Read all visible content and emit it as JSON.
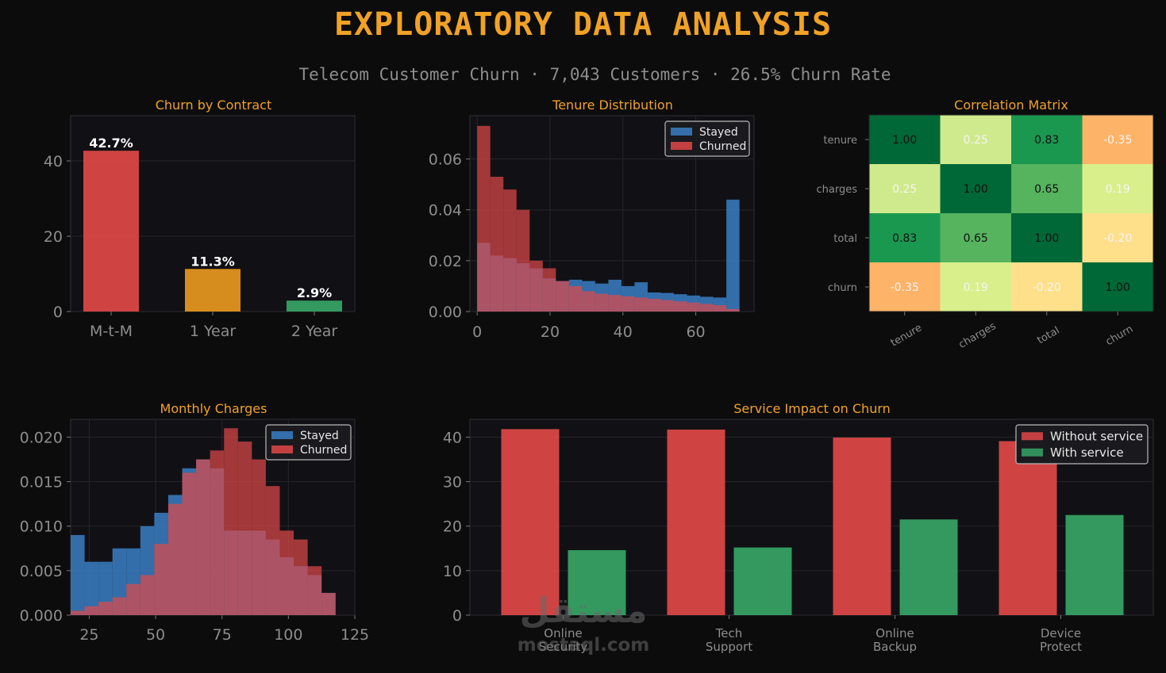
{
  "header": {
    "title": "EXPLORATORY DATA ANALYSIS",
    "subtitle": "Telecom Customer Churn  ·  7,043 Customers  ·  26.5% Churn Rate"
  },
  "colors": {
    "accent": "#f0a226",
    "red": "#e04848",
    "orange": "#e8981e",
    "green": "#36a566",
    "blue": "#3a7fc4",
    "panel_bg": "#111115",
    "axis_text": "#8d8d8d"
  },
  "chart_data": [
    {
      "type": "bar",
      "title": "Churn by Contract",
      "categories": [
        "M-t-M",
        "1 Year",
        "2 Year"
      ],
      "values": [
        42.7,
        11.3,
        2.9
      ],
      "labels": [
        "42.7%",
        "11.3%",
        "2.9%"
      ],
      "bar_colors": [
        "#e04848",
        "#e8981e",
        "#36a566"
      ],
      "ylim": [
        0,
        52
      ],
      "yticks": [
        0,
        20,
        40
      ],
      "grid": true
    },
    {
      "type": "bar",
      "title": "Tenure Distribution",
      "subtype": "histogram",
      "bin_edges": [
        0,
        3.6,
        7.2,
        10.8,
        14.4,
        18,
        21.6,
        25.2,
        28.8,
        32.4,
        36,
        39.6,
        43.2,
        46.8,
        50.4,
        54,
        57.6,
        61.2,
        64.8,
        68.4,
        72
      ],
      "series": [
        {
          "name": "Stayed",
          "color": "#3a7fc4",
          "values": [
            0.027,
            0.022,
            0.021,
            0.019,
            0.017,
            0.013,
            0.012,
            0.0125,
            0.012,
            0.011,
            0.0125,
            0.01,
            0.0115,
            0.0075,
            0.0073,
            0.0068,
            0.0063,
            0.0058,
            0.0055,
            0.044
          ]
        },
        {
          "name": "Churned",
          "color": "#e04848",
          "values": [
            0.073,
            0.053,
            0.048,
            0.04,
            0.02,
            0.017,
            0.012,
            0.01,
            0.008,
            0.007,
            0.0065,
            0.006,
            0.0055,
            0.005,
            0.0045,
            0.004,
            0.0035,
            0.003,
            0.0025,
            0.001
          ]
        }
      ],
      "xlim": [
        -2,
        76
      ],
      "ylim": [
        0,
        0.077
      ],
      "xticks": [
        0,
        20,
        40,
        60
      ],
      "yticks": [
        0.0,
        0.02,
        0.04,
        0.06
      ],
      "ytick_labels": [
        "0.00",
        "0.02",
        "0.04",
        "0.06"
      ],
      "legend": "top-right",
      "grid": true
    },
    {
      "type": "heatmap",
      "title": "Correlation Matrix",
      "rows": [
        "tenure",
        "charges",
        "total",
        "churn"
      ],
      "cols": [
        "tenure",
        "charges",
        "total",
        "churn"
      ],
      "values": [
        [
          1.0,
          0.25,
          0.83,
          -0.35
        ],
        [
          0.25,
          1.0,
          0.65,
          0.19
        ],
        [
          0.83,
          0.65,
          1.0,
          -0.2
        ],
        [
          -0.35,
          0.19,
          -0.2,
          1.0
        ]
      ],
      "labels": [
        [
          "1.00",
          "0.25",
          "0.83",
          "-0.35"
        ],
        [
          "0.25",
          "1.00",
          "0.65",
          "0.19"
        ],
        [
          "0.83",
          "0.65",
          "1.00",
          "-0.20"
        ],
        [
          "-0.35",
          "0.19",
          "-0.20",
          "1.00"
        ]
      ],
      "colormap": "RdYlGn"
    },
    {
      "type": "bar",
      "title": "Monthly Charges",
      "subtype": "histogram",
      "bin_edges": [
        18,
        23.25,
        28.5,
        33.75,
        39,
        44.25,
        49.5,
        54.75,
        60,
        65.25,
        70.5,
        75.75,
        81,
        86.25,
        91.5,
        96.75,
        102,
        107.25,
        112.5,
        117.75
      ],
      "series": [
        {
          "name": "Stayed",
          "color": "#3a7fc4",
          "values": [
            0.009,
            0.006,
            0.006,
            0.0075,
            0.0075,
            0.01,
            0.0115,
            0.0135,
            0.0165,
            0.0175,
            0.0165,
            0.0095,
            0.0095,
            0.0095,
            0.0085,
            0.0065,
            0.0055,
            0.0045,
            0.0025
          ]
        },
        {
          "name": "Churned",
          "color": "#e04848",
          "values": [
            0.0005,
            0.001,
            0.0015,
            0.002,
            0.0035,
            0.0045,
            0.008,
            0.0125,
            0.016,
            0.0175,
            0.0185,
            0.021,
            0.0195,
            0.0175,
            0.0145,
            0.0095,
            0.0085,
            0.0055,
            0.0025
          ]
        }
      ],
      "xlim": [
        18,
        125
      ],
      "ylim": [
        0,
        0.022
      ],
      "xticks": [
        25,
        50,
        75,
        100,
        125
      ],
      "yticks": [
        0.0,
        0.005,
        0.01,
        0.015,
        0.02
      ],
      "ytick_labels": [
        "0.000",
        "0.005",
        "0.010",
        "0.015",
        "0.020"
      ],
      "legend": "top-right",
      "grid": true
    },
    {
      "type": "bar",
      "title": "Service Impact on Churn",
      "categories": [
        "Online\nSecurity",
        "Tech\nSupport",
        "Online\nBackup",
        "Device\nProtect"
      ],
      "series": [
        {
          "name": "Without service",
          "color": "#e04848",
          "values": [
            41.8,
            41.7,
            39.9,
            39.1
          ]
        },
        {
          "name": "With service",
          "color": "#36a566",
          "values": [
            14.6,
            15.2,
            21.5,
            22.5
          ]
        }
      ],
      "ylim": [
        0,
        44
      ],
      "yticks": [
        0,
        10,
        20,
        30,
        40
      ],
      "legend": "top-right",
      "grid": true
    }
  ],
  "watermark": {
    "arabic": "مستقل",
    "latin": "mostaql.com"
  }
}
